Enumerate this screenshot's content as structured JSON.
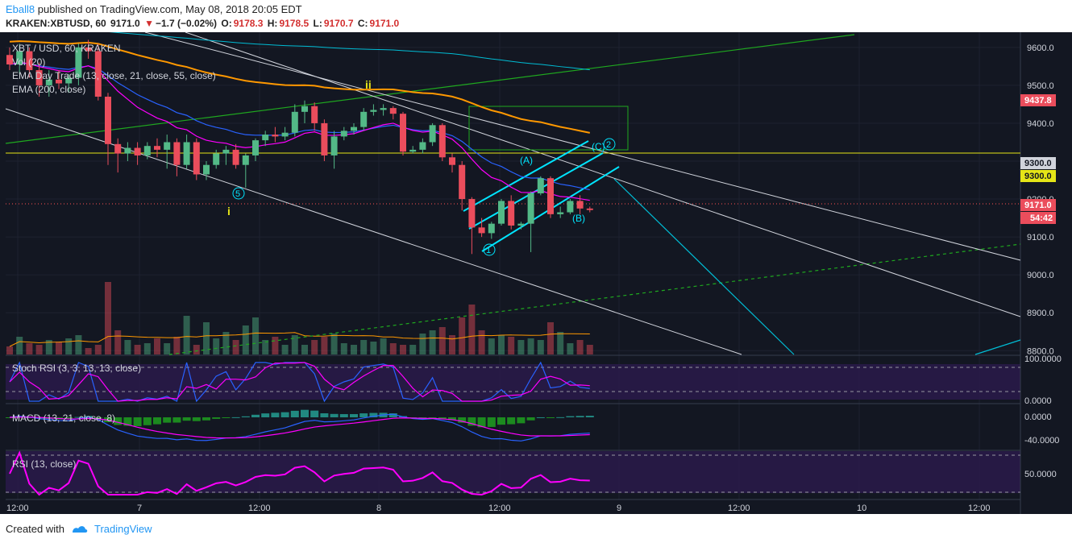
{
  "header": {
    "author": "Eball8",
    "published": "published on TradingView.com, May 08, 2018 20:05 EDT",
    "symbol": "KRAKEN:XBTUSD, 60",
    "last": "9171.0",
    "change": "−1.7 (−0.02%)",
    "o_label": "O:",
    "o": "9178.3",
    "h_label": "H:",
    "h": "9178.5",
    "l_label": "L:",
    "l": "9170.7",
    "c_label": "C:",
    "c": "9171.0"
  },
  "footer": {
    "created": "Created with",
    "brand": "TradingView"
  },
  "colors": {
    "background": "#131722",
    "up": "#53b987",
    "down": "#eb4d5c",
    "ema_fast": "#ff00ff",
    "ema_mid": "#2962ff",
    "ema_slow": "#ff9800",
    "ema200": "#00bcd4",
    "trend_green": "#1fa81f",
    "channel": "#00e5ff",
    "rsi": "#ff00ff"
  },
  "legend": {
    "main": "XBT / USD, 60, KRAKEN",
    "vol": "Vol (20)",
    "ema_day": "EMA Day Trade (13, close, 21, close, 55, close)",
    "ema200": "EMA (200, close)",
    "stoch": "Stoch RSI (3, 3, 13, 13, close)",
    "macd": "MACD (13, 21, close, 8)",
    "rsi": "RSI (13, close)"
  },
  "annotations": {
    "wave_ii": "ii",
    "wave_i": "i",
    "wave_5": "5",
    "wave_1": "1",
    "wave_2": "2",
    "wave_A": "(A)",
    "wave_B": "(B)",
    "wave_C": "(C)"
  },
  "price_tags": {
    "ema_slow": "9437.8",
    "level_9300": "9300.0",
    "level_9300b": "9300.0",
    "last": "9171.0",
    "countdown": "54:42"
  },
  "chart_data": {
    "type": "candlestick",
    "symbol": "XBT / USD, 60, KRAKEN",
    "y_ticks": [
      "9600.0",
      "9500.0",
      "9400.0",
      "9300.0",
      "9200.0",
      "9100.0",
      "9000.0",
      "8900.0",
      "8800.0"
    ],
    "ylim": [
      8790,
      9640
    ],
    "x_ticks": [
      "12:00",
      "7",
      "12:00",
      "8",
      "12:00",
      "9",
      "12:00",
      "10",
      "12:00"
    ],
    "candles": [
      {
        "o": 9580,
        "h": 9600,
        "l": 9540,
        "c": 9555
      },
      {
        "o": 9555,
        "h": 9610,
        "l": 9530,
        "c": 9590
      },
      {
        "o": 9590,
        "h": 9600,
        "l": 9520,
        "c": 9540
      },
      {
        "o": 9540,
        "h": 9560,
        "l": 9470,
        "c": 9500
      },
      {
        "o": 9500,
        "h": 9540,
        "l": 9470,
        "c": 9515
      },
      {
        "o": 9515,
        "h": 9540,
        "l": 9490,
        "c": 9505
      },
      {
        "o": 9505,
        "h": 9530,
        "l": 9480,
        "c": 9520
      },
      {
        "o": 9520,
        "h": 9610,
        "l": 9500,
        "c": 9600
      },
      {
        "o": 9600,
        "h": 9620,
        "l": 9570,
        "c": 9590
      },
      {
        "o": 9590,
        "h": 9610,
        "l": 9460,
        "c": 9470
      },
      {
        "o": 9470,
        "h": 9480,
        "l": 9290,
        "c": 9345
      },
      {
        "o": 9345,
        "h": 9360,
        "l": 9270,
        "c": 9320
      },
      {
        "o": 9320,
        "h": 9350,
        "l": 9300,
        "c": 9335
      },
      {
        "o": 9335,
        "h": 9350,
        "l": 9290,
        "c": 9315
      },
      {
        "o": 9315,
        "h": 9350,
        "l": 9305,
        "c": 9340
      },
      {
        "o": 9340,
        "h": 9360,
        "l": 9310,
        "c": 9330
      },
      {
        "o": 9330,
        "h": 9370,
        "l": 9280,
        "c": 9350
      },
      {
        "o": 9350,
        "h": 9360,
        "l": 9260,
        "c": 9290
      },
      {
        "o": 9290,
        "h": 9370,
        "l": 9280,
        "c": 9350
      },
      {
        "o": 9350,
        "h": 9360,
        "l": 9250,
        "c": 9265
      },
      {
        "o": 9265,
        "h": 9300,
        "l": 9250,
        "c": 9290
      },
      {
        "o": 9290,
        "h": 9330,
        "l": 9280,
        "c": 9320
      },
      {
        "o": 9320,
        "h": 9340,
        "l": 9290,
        "c": 9330
      },
      {
        "o": 9330,
        "h": 9345,
        "l": 9280,
        "c": 9290
      },
      {
        "o": 9290,
        "h": 9320,
        "l": 9230,
        "c": 9315
      },
      {
        "o": 9315,
        "h": 9360,
        "l": 9300,
        "c": 9355
      },
      {
        "o": 9355,
        "h": 9380,
        "l": 9340,
        "c": 9370
      },
      {
        "o": 9370,
        "h": 9390,
        "l": 9350,
        "c": 9365
      },
      {
        "o": 9365,
        "h": 9390,
        "l": 9355,
        "c": 9375
      },
      {
        "o": 9375,
        "h": 9450,
        "l": 9365,
        "c": 9430
      },
      {
        "o": 9430,
        "h": 9460,
        "l": 9400,
        "c": 9445
      },
      {
        "o": 9445,
        "h": 9455,
        "l": 9380,
        "c": 9400
      },
      {
        "o": 9400,
        "h": 9410,
        "l": 9300,
        "c": 9315
      },
      {
        "o": 9315,
        "h": 9380,
        "l": 9280,
        "c": 9365
      },
      {
        "o": 9365,
        "h": 9390,
        "l": 9355,
        "c": 9380
      },
      {
        "o": 9380,
        "h": 9400,
        "l": 9370,
        "c": 9390
      },
      {
        "o": 9390,
        "h": 9440,
        "l": 9380,
        "c": 9430
      },
      {
        "o": 9430,
        "h": 9450,
        "l": 9420,
        "c": 9435
      },
      {
        "o": 9435,
        "h": 9450,
        "l": 9420,
        "c": 9440
      },
      {
        "o": 9440,
        "h": 9445,
        "l": 9410,
        "c": 9425
      },
      {
        "o": 9425,
        "h": 9430,
        "l": 9315,
        "c": 9325
      },
      {
        "o": 9325,
        "h": 9340,
        "l": 9320,
        "c": 9330
      },
      {
        "o": 9330,
        "h": 9360,
        "l": 9320,
        "c": 9350
      },
      {
        "o": 9350,
        "h": 9400,
        "l": 9340,
        "c": 9395
      },
      {
        "o": 9395,
        "h": 9400,
        "l": 9300,
        "c": 9310
      },
      {
        "o": 9310,
        "h": 9320,
        "l": 9270,
        "c": 9290
      },
      {
        "o": 9290,
        "h": 9300,
        "l": 9170,
        "c": 9200
      },
      {
        "o": 9200,
        "h": 9205,
        "l": 9055,
        "c": 9125
      },
      {
        "o": 9125,
        "h": 9150,
        "l": 9100,
        "c": 9110
      },
      {
        "o": 9110,
        "h": 9140,
        "l": 9095,
        "c": 9135
      },
      {
        "o": 9135,
        "h": 9200,
        "l": 9130,
        "c": 9195
      },
      {
        "o": 9195,
        "h": 9210,
        "l": 9120,
        "c": 9130
      },
      {
        "o": 9130,
        "h": 9140,
        "l": 9120,
        "c": 9135
      },
      {
        "o": 9135,
        "h": 9220,
        "l": 9060,
        "c": 9215
      },
      {
        "o": 9215,
        "h": 9260,
        "l": 9210,
        "c": 9255
      },
      {
        "o": 9255,
        "h": 9260,
        "l": 9150,
        "c": 9160
      },
      {
        "o": 9160,
        "h": 9180,
        "l": 9150,
        "c": 9165
      },
      {
        "o": 9165,
        "h": 9200,
        "l": 9160,
        "c": 9195
      },
      {
        "o": 9195,
        "h": 9210,
        "l": 9160,
        "c": 9175
      },
      {
        "o": 9175,
        "h": 9180,
        "l": 9165,
        "c": 9171
      }
    ],
    "volume": [
      10,
      22,
      14,
      12,
      18,
      16,
      20,
      24,
      8,
      12,
      90,
      30,
      18,
      12,
      14,
      20,
      14,
      22,
      48,
      12,
      40,
      20,
      28,
      18,
      36,
      46,
      18,
      22,
      12,
      24,
      12,
      18,
      22,
      26,
      14,
      12,
      18,
      16,
      20,
      14,
      12,
      12,
      26,
      30,
      34,
      24,
      46,
      62,
      30,
      20,
      24,
      22,
      18,
      20,
      18,
      40,
      28,
      14,
      18,
      12
    ],
    "stoch_rsi": {
      "ylim": [
        0,
        100
      ],
      "ticks": [
        "100.0000",
        "0.0000"
      ]
    },
    "macd": {
      "ticks": [
        "0.0000",
        "-40.0000"
      ]
    },
    "rsi": {
      "ticks": [
        "50.0000"
      ]
    }
  }
}
